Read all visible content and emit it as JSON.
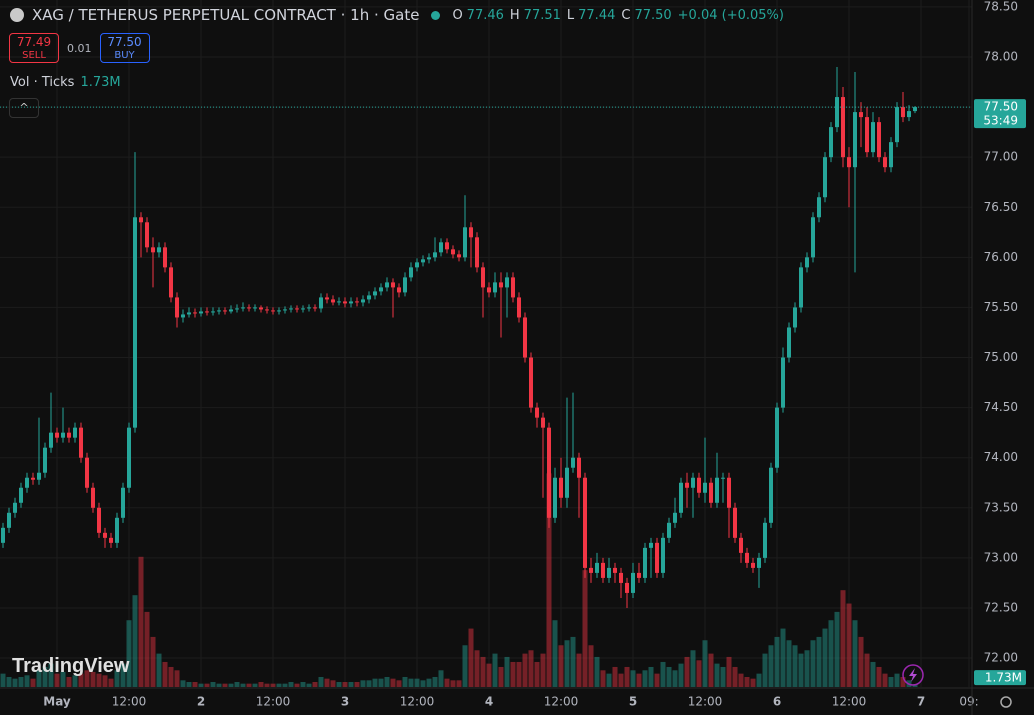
{
  "header": {
    "symbol": "XAG / TETHERUS PERPETUAL CONTRACT · 1h · Gate",
    "o_label": "O",
    "open": "77.46",
    "h_label": "H",
    "high": "77.51",
    "l_label": "L",
    "low": "77.44",
    "c_label": "C",
    "close": "77.50",
    "change": "+0.04 (+0.05%)"
  },
  "trade": {
    "sell_price": "77.49",
    "sell_label": "SELL",
    "spread": "0.01",
    "buy_price": "77.50",
    "buy_label": "BUY"
  },
  "volume_legend": {
    "label": "Vol · Ticks",
    "value": "1.73M"
  },
  "logo": "TradingView",
  "chart_data": {
    "type": "candlestick",
    "up_color": "#26a69a",
    "down_color": "#f23645",
    "grid": true,
    "open": [
      73.15,
      73.3,
      73.45,
      73.55,
      73.7,
      73.8,
      73.78,
      73.85,
      74.1,
      74.25,
      74.2,
      74.25,
      74.2,
      74.3,
      74.0,
      73.7,
      73.5,
      73.25,
      73.2,
      73.15,
      73.4,
      73.7,
      74.3,
      76.4,
      76.35,
      76.1,
      76.05,
      76.1,
      75.9,
      75.6,
      75.4,
      75.43,
      75.45,
      75.44,
      75.46,
      75.45,
      75.46,
      75.47,
      75.46,
      75.48,
      75.49,
      75.5,
      75.49,
      75.5,
      75.48,
      75.47,
      75.46,
      75.47,
      75.48,
      75.49,
      75.48,
      75.49,
      75.5,
      75.49,
      75.6,
      75.58,
      75.55,
      75.56,
      75.54,
      75.56,
      75.55,
      75.58,
      75.62,
      75.66,
      75.7,
      75.75,
      75.7,
      75.65,
      75.8,
      75.9,
      75.95,
      75.98,
      76.0,
      76.05,
      76.15,
      76.08,
      76.03,
      76.0,
      76.3,
      76.2,
      75.9,
      75.7,
      75.65,
      75.75,
      75.7,
      75.8,
      75.6,
      75.4,
      75.0,
      74.5,
      74.4,
      74.3,
      73.4,
      73.8,
      73.6,
      73.9,
      74.0,
      73.8,
      72.9,
      72.85,
      72.95,
      72.8,
      72.9,
      72.85,
      72.75,
      72.65,
      72.85,
      72.8,
      73.1,
      73.15,
      72.85,
      73.2,
      73.35,
      73.45,
      73.75,
      73.7,
      73.8,
      73.65,
      73.75,
      73.55,
      73.8,
      73.8,
      73.5,
      73.2,
      73.05,
      72.95,
      72.9,
      73.0,
      73.35,
      73.9,
      74.5,
      75.0,
      75.3,
      75.5,
      75.9,
      76.0,
      76.4,
      76.6,
      77.0,
      77.3,
      77.6,
      77.0,
      76.9,
      77.45,
      77.4,
      77.05,
      77.35,
      77.0,
      76.9,
      77.15,
      77.5,
      77.4,
      77.46
    ],
    "high": [
      73.35,
      73.5,
      73.6,
      73.75,
      73.85,
      73.85,
      74.4,
      74.15,
      74.65,
      74.3,
      74.5,
      74.3,
      74.35,
      74.35,
      74.05,
      73.75,
      73.55,
      73.3,
      73.25,
      73.45,
      73.75,
      74.35,
      77.05,
      76.45,
      76.4,
      76.2,
      76.15,
      76.15,
      75.95,
      75.65,
      75.48,
      75.5,
      75.49,
      75.5,
      75.5,
      75.5,
      75.5,
      75.5,
      75.52,
      75.53,
      75.55,
      75.53,
      75.53,
      75.52,
      75.51,
      75.5,
      75.5,
      75.51,
      75.52,
      75.52,
      75.52,
      75.53,
      75.53,
      75.64,
      75.64,
      75.62,
      75.6,
      75.6,
      75.6,
      75.6,
      75.62,
      75.66,
      75.7,
      75.74,
      75.8,
      75.79,
      75.74,
      75.85,
      75.95,
      75.99,
      76.02,
      76.04,
      76.2,
      76.19,
      76.19,
      76.12,
      76.07,
      76.62,
      76.35,
      76.25,
      75.95,
      75.75,
      75.85,
      75.85,
      75.85,
      75.85,
      75.65,
      75.45,
      75.05,
      74.55,
      74.45,
      74.35,
      73.9,
      74.0,
      74.6,
      74.65,
      74.05,
      73.85,
      73.0,
      73.05,
      73.0,
      73.0,
      72.95,
      72.9,
      72.8,
      72.95,
      72.95,
      73.15,
      73.2,
      73.2,
      73.25,
      73.4,
      73.6,
      73.8,
      73.85,
      73.85,
      73.85,
      74.2,
      73.8,
      74.05,
      73.85,
      73.85,
      73.55,
      73.25,
      73.1,
      73.0,
      73.05,
      73.4,
      73.95,
      74.55,
      75.1,
      75.35,
      75.55,
      75.95,
      76.05,
      76.45,
      76.65,
      77.05,
      77.35,
      77.9,
      77.7,
      77.1,
      77.85,
      77.55,
      77.5,
      77.45,
      77.4,
      77.05,
      77.2,
      77.55,
      77.65,
      77.52,
      77.51
    ],
    "low": [
      73.1,
      73.25,
      73.4,
      73.5,
      73.65,
      73.73,
      73.73,
      73.8,
      74.05,
      74.15,
      74.15,
      74.15,
      74.15,
      73.95,
      73.65,
      73.45,
      73.2,
      73.1,
      73.1,
      73.1,
      73.35,
      73.65,
      74.25,
      76.0,
      76.05,
      75.7,
      76.0,
      75.85,
      75.55,
      75.3,
      75.35,
      75.4,
      75.4,
      75.41,
      75.42,
      75.42,
      75.43,
      75.43,
      75.44,
      75.45,
      75.46,
      75.46,
      75.46,
      75.45,
      75.44,
      75.43,
      75.43,
      75.44,
      75.45,
      75.45,
      75.45,
      75.46,
      75.46,
      75.45,
      75.54,
      75.52,
      75.52,
      75.5,
      75.5,
      75.51,
      75.51,
      75.54,
      75.58,
      75.62,
      75.66,
      75.4,
      75.6,
      75.61,
      75.76,
      75.86,
      75.91,
      75.94,
      75.96,
      76.01,
      76.04,
      75.99,
      75.96,
      75.96,
      75.9,
      75.85,
      75.4,
      75.6,
      75.6,
      75.2,
      75.4,
      75.55,
      75.35,
      74.95,
      74.45,
      74.3,
      73.6,
      73.3,
      73.35,
      73.5,
      73.5,
      73.85,
      73.4,
      72.8,
      72.75,
      72.8,
      72.75,
      72.75,
      72.75,
      72.6,
      72.5,
      72.6,
      72.75,
      72.75,
      72.8,
      72.8,
      72.8,
      73.15,
      73.3,
      73.4,
      73.5,
      73.4,
      73.6,
      73.55,
      73.5,
      73.5,
      73.55,
      73.2,
      73.15,
      72.95,
      72.9,
      72.85,
      72.7,
      72.95,
      73.3,
      73.85,
      74.45,
      74.95,
      75.25,
      75.45,
      75.85,
      75.95,
      76.35,
      76.55,
      76.95,
      77.25,
      76.9,
      76.5,
      75.85,
      77.1,
      77.0,
      77.0,
      76.95,
      76.85,
      76.85,
      77.1,
      77.35,
      77.36,
      77.44
    ],
    "close": [
      73.3,
      73.45,
      73.55,
      73.7,
      73.8,
      73.78,
      73.85,
      74.1,
      74.25,
      74.2,
      74.25,
      74.2,
      74.3,
      74.0,
      73.7,
      73.5,
      73.25,
      73.2,
      73.15,
      73.4,
      73.7,
      74.3,
      76.4,
      76.35,
      76.1,
      76.05,
      76.1,
      75.9,
      75.6,
      75.4,
      75.43,
      75.45,
      75.44,
      75.46,
      75.45,
      75.46,
      75.47,
      75.46,
      75.48,
      75.49,
      75.5,
      75.49,
      75.5,
      75.48,
      75.47,
      75.46,
      75.47,
      75.48,
      75.49,
      75.48,
      75.49,
      75.5,
      75.49,
      75.6,
      75.58,
      75.55,
      75.56,
      75.54,
      75.56,
      75.55,
      75.58,
      75.62,
      75.66,
      75.7,
      75.75,
      75.7,
      75.65,
      75.8,
      75.9,
      75.95,
      75.98,
      76.0,
      76.05,
      76.15,
      76.08,
      76.03,
      76.0,
      76.3,
      76.2,
      75.9,
      75.7,
      75.65,
      75.75,
      75.7,
      75.8,
      75.6,
      75.4,
      75.0,
      74.5,
      74.4,
      74.3,
      73.4,
      73.8,
      73.6,
      73.9,
      74.0,
      73.8,
      72.9,
      72.85,
      72.95,
      72.8,
      72.9,
      72.85,
      72.75,
      72.65,
      72.85,
      72.8,
      73.1,
      73.15,
      72.85,
      73.2,
      73.35,
      73.45,
      73.75,
      73.7,
      73.8,
      73.65,
      73.75,
      73.55,
      73.8,
      73.8,
      73.5,
      73.2,
      73.05,
      72.95,
      72.9,
      73.0,
      73.35,
      73.9,
      74.5,
      75.0,
      75.3,
      75.5,
      75.9,
      76.0,
      76.4,
      76.6,
      77.0,
      77.3,
      77.6,
      77.0,
      76.9,
      77.45,
      77.4,
      77.05,
      77.35,
      77.0,
      76.9,
      77.15,
      77.5,
      77.4,
      77.46,
      77.5
    ],
    "volume": [
      8,
      6,
      5,
      6,
      7,
      5,
      10,
      12,
      14,
      8,
      9,
      6,
      7,
      8,
      10,
      9,
      8,
      7,
      5,
      10,
      14,
      40,
      55,
      78,
      45,
      30,
      20,
      15,
      12,
      10,
      4,
      3,
      3,
      2,
      2,
      3,
      2,
      2,
      2,
      3,
      2,
      2,
      2,
      3,
      2,
      2,
      2,
      2,
      3,
      2,
      3,
      2,
      3,
      6,
      5,
      4,
      3,
      3,
      3,
      3,
      4,
      4,
      5,
      5,
      6,
      5,
      4,
      6,
      5,
      5,
      4,
      5,
      6,
      10,
      5,
      4,
      4,
      25,
      35,
      22,
      18,
      14,
      20,
      12,
      18,
      15,
      15,
      20,
      22,
      15,
      20,
      128,
      40,
      25,
      28,
      30,
      20,
      70,
      25,
      18,
      10,
      8,
      12,
      8,
      12,
      10,
      8,
      10,
      12,
      8,
      15,
      12,
      10,
      14,
      18,
      22,
      16,
      28,
      20,
      14,
      12,
      18,
      12,
      8,
      6,
      5,
      8,
      20,
      25,
      30,
      35,
      28,
      25,
      20,
      22,
      28,
      30,
      35,
      40,
      45,
      58,
      50,
      40,
      30,
      20,
      15,
      12,
      8,
      6,
      8,
      6,
      4,
      1.73
    ],
    "ylim": [
      71.711,
      78.569
    ],
    "yticks": [
      {
        "value": 72,
        "label": "72.00"
      },
      {
        "value": 72.5,
        "label": "72.50"
      },
      {
        "value": 73,
        "label": "73.00"
      },
      {
        "value": 73.5,
        "label": "73.50"
      },
      {
        "value": 74,
        "label": "74.00"
      },
      {
        "value": 74.5,
        "label": "74.50"
      },
      {
        "value": 75,
        "label": "75.00"
      },
      {
        "value": 75.5,
        "label": "75.50"
      },
      {
        "value": 76,
        "label": "76.00"
      },
      {
        "value": 76.5,
        "label": "76.50"
      },
      {
        "value": 77,
        "label": "77.00"
      },
      {
        "value": 77.5,
        "label": "77.50"
      },
      {
        "value": 78,
        "label": "78.00"
      },
      {
        "value": 78.5,
        "label": "78.50"
      }
    ],
    "xlim": [
      -0.5,
      161.5
    ],
    "xticks": [
      {
        "value": 9,
        "label": "May"
      },
      {
        "value": 21,
        "label": "12:00"
      },
      {
        "value": 33,
        "label": "2"
      },
      {
        "value": 45,
        "label": "12:00"
      },
      {
        "value": 57,
        "label": "3"
      },
      {
        "value": 69,
        "label": "12:00"
      },
      {
        "value": 81,
        "label": "4"
      },
      {
        "value": 93,
        "label": "12:00"
      },
      {
        "value": 105,
        "label": "5"
      },
      {
        "value": 117,
        "label": "12:00"
      },
      {
        "value": 129,
        "label": "6"
      },
      {
        "value": 141,
        "label": "12:00"
      },
      {
        "value": 153,
        "label": "7"
      },
      {
        "value": 161,
        "label": "09:"
      }
    ],
    "vlim": [
      0,
      130
    ],
    "last_price": {
      "value": 77.5,
      "label": "77.50"
    },
    "countdown": "53:49",
    "volume_scale_label": {
      "value": 1.73,
      "label": "1.73M"
    }
  }
}
